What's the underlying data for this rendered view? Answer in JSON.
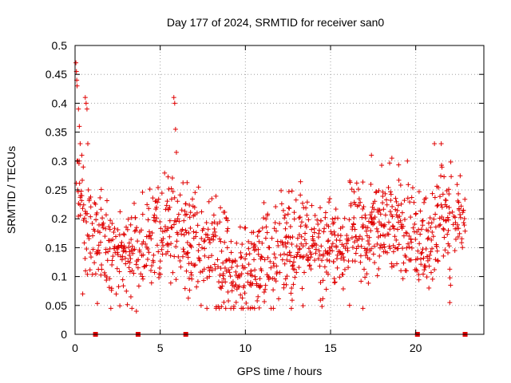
{
  "chart_data": {
    "type": "scatter",
    "title": "Day 177 of 2024, SRMTID for receiver san0",
    "xlabel": "GPS time / hours",
    "ylabel": "SRMTID / TECUs",
    "xlim": [
      0,
      24
    ],
    "ylim": [
      0,
      0.5
    ],
    "x_ticks": [
      0,
      5,
      10,
      15,
      20
    ],
    "x_tick_labels": [
      "0",
      "5",
      "10",
      "15",
      "20"
    ],
    "y_ticks": [
      0,
      0.05,
      0.1,
      0.15,
      0.2,
      0.25,
      0.3,
      0.35,
      0.4,
      0.45,
      0.5
    ],
    "y_tick_labels": [
      "0",
      "0.05",
      "0.1",
      "0.15",
      "0.2",
      "0.25",
      "0.3",
      "0.35",
      "0.4",
      "0.45",
      "0.5"
    ],
    "grid": true,
    "marker": "plus",
    "color": "#e00000",
    "trend": {
      "x": [
        0,
        0.3,
        0.7,
        1.5,
        2.5,
        3.5,
        4.5,
        5.5,
        6.5,
        7.5,
        8.5,
        9.5,
        10.5,
        11.5,
        12.5,
        13.5,
        14.5,
        15.5,
        16.5,
        17.5,
        18.5,
        19.5,
        20.5,
        21.5,
        22.5
      ],
      "y": [
        0.3,
        0.24,
        0.19,
        0.15,
        0.14,
        0.14,
        0.16,
        0.18,
        0.18,
        0.15,
        0.13,
        0.11,
        0.11,
        0.13,
        0.16,
        0.16,
        0.15,
        0.16,
        0.17,
        0.18,
        0.2,
        0.2,
        0.15,
        0.2,
        0.2
      ],
      "spread": 0.045
    },
    "points": [
      {
        "x": 0.05,
        "y": 0.47
      },
      {
        "x": 0.08,
        "y": 0.455
      },
      {
        "x": 0.1,
        "y": 0.44
      },
      {
        "x": 0.12,
        "y": 0.43
      },
      {
        "x": 0.2,
        "y": 0.39
      },
      {
        "x": 0.25,
        "y": 0.36
      },
      {
        "x": 0.3,
        "y": 0.33
      },
      {
        "x": 0.4,
        "y": 0.31
      },
      {
        "x": 0.15,
        "y": 0.25
      },
      {
        "x": 0.6,
        "y": 0.41
      },
      {
        "x": 0.65,
        "y": 0.4
      },
      {
        "x": 0.7,
        "y": 0.39
      },
      {
        "x": 0.75,
        "y": 0.33
      },
      {
        "x": 5.8,
        "y": 0.41
      },
      {
        "x": 5.85,
        "y": 0.4
      },
      {
        "x": 5.9,
        "y": 0.355
      },
      {
        "x": 5.95,
        "y": 0.315
      },
      {
        "x": 17.4,
        "y": 0.31
      },
      {
        "x": 18.6,
        "y": 0.305
      },
      {
        "x": 21.1,
        "y": 0.33
      },
      {
        "x": 21.5,
        "y": 0.33
      },
      {
        "x": 0.45,
        "y": 0.07
      },
      {
        "x": 3.6,
        "y": 0.04
      },
      {
        "x": 7.4,
        "y": 0.05
      },
      {
        "x": 16.9,
        "y": 0.045
      },
      {
        "x": 22.0,
        "y": 0.055
      }
    ],
    "zero_points_x": [
      1.2,
      3.7,
      6.5,
      20.1,
      22.9
    ]
  }
}
